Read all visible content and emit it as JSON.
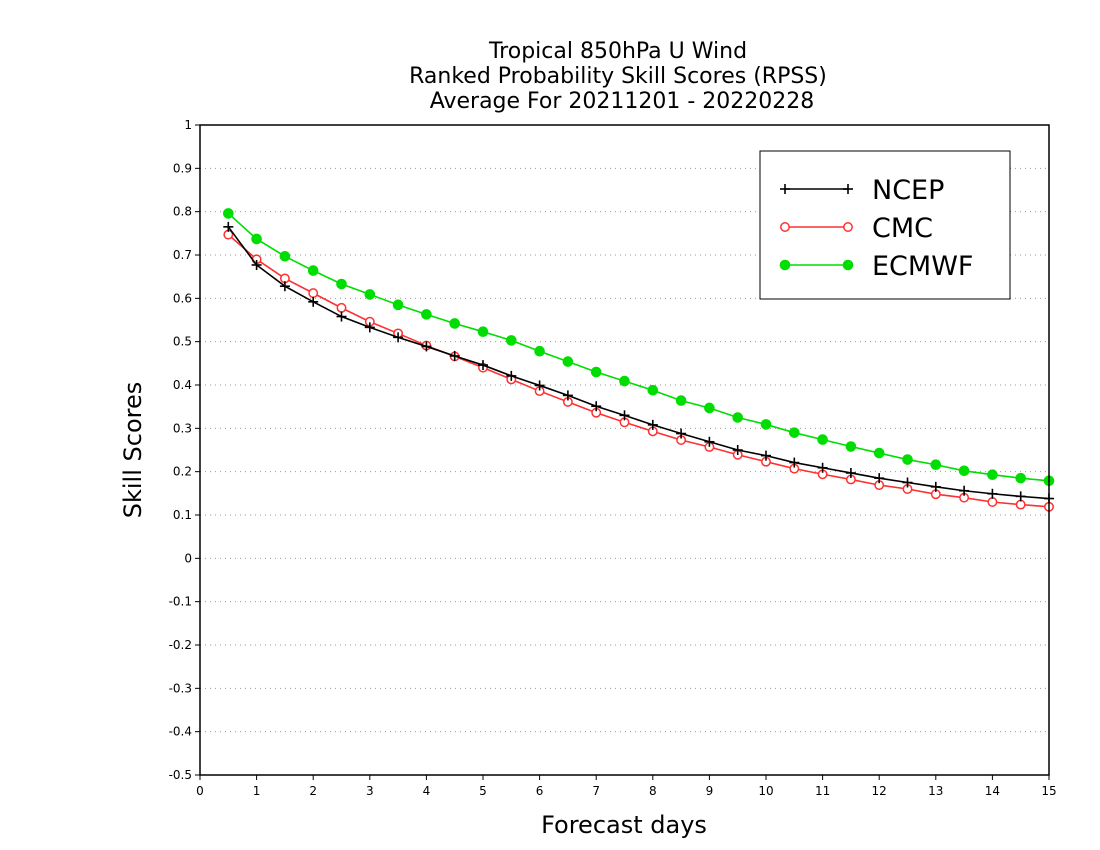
{
  "chart_data": {
    "type": "line",
    "title": [
      "Tropical 850hPa U Wind",
      "Ranked Probability Skill Scores (RPSS)",
      "Average For 20211201 - 20220228"
    ],
    "xlabel": "Forecast days",
    "ylabel": "Skill Scores",
    "xlim": [
      0,
      15
    ],
    "ylim": [
      -0.5,
      1
    ],
    "x_ticks": [
      "0",
      "1",
      "2",
      "3",
      "4",
      "5",
      "6",
      "7",
      "8",
      "9",
      "10",
      "11",
      "12",
      "13",
      "14",
      "15"
    ],
    "y_ticks": [
      "1",
      "0.9",
      "0.8",
      "0.7",
      "0.6",
      "0.5",
      "0.4",
      "0.3",
      "0.2",
      "0.1",
      "0",
      "-0.1",
      "-0.2",
      "-0.3",
      "-0.4",
      "-0.5"
    ],
    "grid": "horizontal-dotted",
    "legend_position": "top-right",
    "x": [
      0.5,
      1,
      1.5,
      2,
      2.5,
      3,
      3.5,
      4,
      4.5,
      5,
      5.5,
      6,
      6.5,
      7,
      7.5,
      8,
      8.5,
      9,
      9.5,
      10,
      10.5,
      11,
      11.5,
      12,
      12.5,
      13,
      13.5,
      14,
      14.5,
      15
    ],
    "series": [
      {
        "name": "NCEP",
        "color": "#000000",
        "marker": "plus",
        "values": [
          0.765,
          0.677,
          0.628,
          0.592,
          0.558,
          0.533,
          0.51,
          0.489,
          0.467,
          0.446,
          0.421,
          0.399,
          0.376,
          0.351,
          0.33,
          0.308,
          0.288,
          0.269,
          0.25,
          0.237,
          0.221,
          0.209,
          0.197,
          0.185,
          0.175,
          0.165,
          0.156,
          0.149,
          0.143,
          0.138
        ]
      },
      {
        "name": "CMC",
        "color": "#ff3030",
        "marker": "open-circle",
        "values": [
          0.747,
          0.69,
          0.646,
          0.612,
          0.578,
          0.546,
          0.519,
          0.491,
          0.466,
          0.44,
          0.413,
          0.386,
          0.361,
          0.336,
          0.314,
          0.293,
          0.273,
          0.257,
          0.239,
          0.223,
          0.207,
          0.194,
          0.182,
          0.169,
          0.16,
          0.148,
          0.14,
          0.13,
          0.124,
          0.119
        ]
      },
      {
        "name": "ECMWF",
        "color": "#00dd00",
        "marker": "filled-circle",
        "values": [
          0.796,
          0.737,
          0.697,
          0.664,
          0.633,
          0.609,
          0.585,
          0.563,
          0.542,
          0.523,
          0.503,
          0.478,
          0.454,
          0.43,
          0.409,
          0.388,
          0.364,
          0.347,
          0.325,
          0.309,
          0.29,
          0.274,
          0.258,
          0.243,
          0.228,
          0.216,
          0.202,
          0.193,
          0.185,
          0.179
        ]
      }
    ]
  }
}
